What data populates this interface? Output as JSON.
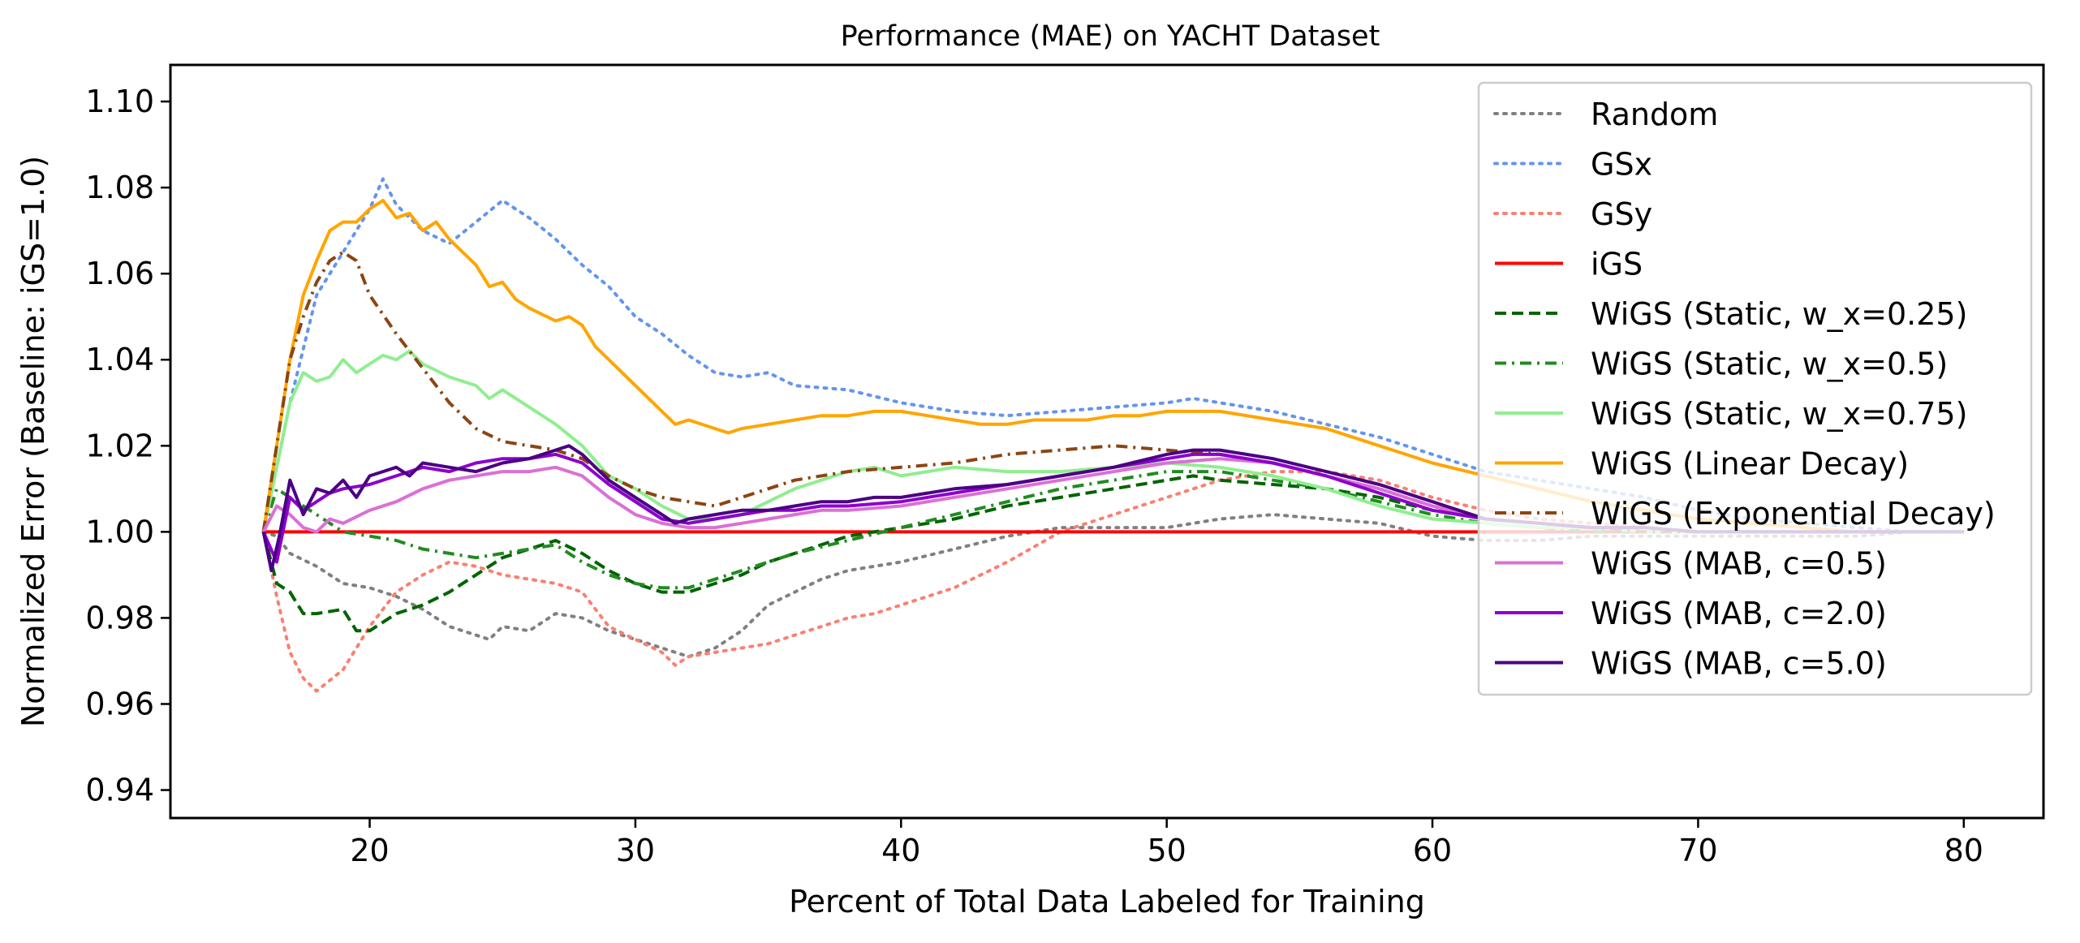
{
  "chart_data": {
    "type": "line",
    "title": "Performance (MAE) on YACHT Dataset",
    "xlabel": "Percent of Total Data Labeled for Training",
    "ylabel": "Normalized Error (Baseline: iGS=1.0)",
    "xlim": [
      12.5,
      83.0
    ],
    "ylim": [
      0.9335,
      1.1085
    ],
    "xticks": [
      20,
      30,
      40,
      50,
      60,
      70,
      80
    ],
    "xtick_labels": [
      "20",
      "30",
      "40",
      "50",
      "60",
      "70",
      "80"
    ],
    "yticks": [
      0.94,
      0.96,
      0.98,
      1.0,
      1.02,
      1.04,
      1.06,
      1.08,
      1.1
    ],
    "ytick_labels": [
      "0.94",
      "0.96",
      "0.98",
      "1.00",
      "1.02",
      "1.04",
      "1.06",
      "1.08",
      "1.10"
    ],
    "grid": false,
    "legend_position": "top-right",
    "series": [
      {
        "name": "Random",
        "color": "#808080",
        "dash": "dotted",
        "x": [
          16,
          16.5,
          17,
          18,
          19,
          20,
          21,
          22,
          23,
          24,
          24.5,
          25,
          26,
          27,
          28,
          29,
          30,
          31,
          32,
          33,
          34,
          35,
          36,
          37,
          38,
          39,
          40,
          42,
          44,
          46,
          48,
          50,
          52,
          54,
          56,
          58,
          60,
          62,
          64,
          66,
          68,
          70,
          72,
          74,
          76,
          78,
          80
        ],
        "y": [
          1.0,
          0.999,
          0.995,
          0.992,
          0.988,
          0.987,
          0.985,
          0.982,
          0.978,
          0.976,
          0.975,
          0.978,
          0.977,
          0.981,
          0.98,
          0.977,
          0.975,
          0.973,
          0.971,
          0.973,
          0.977,
          0.983,
          0.986,
          0.989,
          0.991,
          0.992,
          0.993,
          0.996,
          0.999,
          1.001,
          1.001,
          1.001,
          1.003,
          1.004,
          1.003,
          1.002,
          0.999,
          0.998,
          0.998,
          0.999,
          0.999,
          0.999,
          0.999,
          0.999,
          0.999,
          1.0,
          1.0
        ]
      },
      {
        "name": "GSx",
        "color": "#6495ed",
        "dash": "dotted",
        "x": [
          16,
          17,
          18,
          19,
          20,
          20.5,
          21,
          22,
          23,
          24,
          25,
          26,
          27,
          28,
          29,
          30,
          31,
          32,
          33,
          34,
          35,
          36,
          38,
          40,
          42,
          44,
          46,
          48,
          50,
          51,
          52,
          54,
          56,
          58,
          60,
          62,
          64,
          66,
          68,
          70,
          72,
          74,
          76,
          78,
          80
        ],
        "y": [
          1.0,
          1.03,
          1.055,
          1.065,
          1.075,
          1.082,
          1.076,
          1.07,
          1.067,
          1.072,
          1.077,
          1.073,
          1.068,
          1.062,
          1.057,
          1.05,
          1.046,
          1.041,
          1.037,
          1.036,
          1.037,
          1.034,
          1.033,
          1.03,
          1.028,
          1.027,
          1.028,
          1.029,
          1.03,
          1.031,
          1.03,
          1.028,
          1.025,
          1.022,
          1.018,
          1.014,
          1.012,
          1.01,
          1.008,
          1.005,
          1.003,
          1.002,
          1.001,
          1.0,
          1.0
        ]
      },
      {
        "name": "GSy",
        "color": "#fa8072",
        "dash": "dotted",
        "x": [
          16,
          16.5,
          17,
          17.5,
          18,
          19,
          20,
          21,
          22,
          23,
          24,
          25,
          26,
          27,
          28,
          29,
          30,
          31,
          31.5,
          32,
          33,
          34,
          35,
          36,
          37,
          38,
          39,
          40,
          42,
          44,
          46,
          48,
          50,
          52,
          54,
          56,
          58,
          60,
          62,
          64,
          66,
          68,
          70,
          72,
          74,
          76,
          78,
          80
        ],
        "y": [
          1.0,
          0.985,
          0.972,
          0.966,
          0.963,
          0.968,
          0.978,
          0.986,
          0.99,
          0.993,
          0.992,
          0.99,
          0.989,
          0.988,
          0.986,
          0.978,
          0.975,
          0.972,
          0.969,
          0.971,
          0.972,
          0.973,
          0.974,
          0.976,
          0.978,
          0.98,
          0.981,
          0.983,
          0.987,
          0.993,
          1.0,
          1.004,
          1.008,
          1.012,
          1.014,
          1.014,
          1.012,
          1.008,
          1.005,
          1.003,
          1.002,
          1.001,
          1.0,
          1.0,
          1.0,
          1.0,
          1.0,
          1.0
        ]
      },
      {
        "name": "iGS",
        "color": "#ff0000",
        "dash": "solid",
        "x": [
          16,
          80
        ],
        "y": [
          1.0,
          1.0
        ]
      },
      {
        "name": "WiGS (Static, w_x=0.25)",
        "color": "#006400",
        "dash": "dashed",
        "x": [
          16,
          16.5,
          17,
          17.5,
          18,
          19,
          19.5,
          20,
          21,
          22,
          23,
          24,
          25,
          26,
          27,
          28,
          29,
          30,
          31,
          32,
          33,
          34,
          35,
          36,
          37,
          38,
          39,
          40,
          42,
          44,
          46,
          48,
          50,
          51,
          52,
          54,
          56,
          58,
          60,
          62,
          64,
          66,
          68,
          70,
          72,
          74,
          76,
          78,
          80
        ],
        "y": [
          1.0,
          0.988,
          0.986,
          0.981,
          0.981,
          0.982,
          0.977,
          0.977,
          0.981,
          0.983,
          0.986,
          0.99,
          0.994,
          0.996,
          0.998,
          0.995,
          0.991,
          0.988,
          0.986,
          0.986,
          0.988,
          0.99,
          0.993,
          0.995,
          0.997,
          0.999,
          1.0,
          1.001,
          1.003,
          1.006,
          1.008,
          1.01,
          1.012,
          1.013,
          1.012,
          1.011,
          1.01,
          1.008,
          1.005,
          1.003,
          1.002,
          1.001,
          1.001,
          1.0,
          1.0,
          1.0,
          1.0,
          1.0,
          1.0
        ]
      },
      {
        "name": "WiGS (Static, w_x=0.5)",
        "color": "#228b22",
        "dash": "dashdot",
        "x": [
          16,
          16.5,
          17,
          18,
          19,
          20,
          21,
          22,
          23,
          24,
          25,
          26,
          27,
          28,
          29,
          30,
          31,
          32,
          33,
          34,
          35,
          36,
          38,
          40,
          42,
          44,
          46,
          48,
          50,
          52,
          54,
          56,
          58,
          60,
          62,
          64,
          66,
          68,
          70,
          72,
          74,
          76,
          78,
          80
        ],
        "y": [
          1.0,
          1.01,
          1.008,
          1.004,
          1.0,
          0.999,
          0.998,
          0.996,
          0.995,
          0.994,
          0.995,
          0.996,
          0.997,
          0.993,
          0.99,
          0.988,
          0.987,
          0.987,
          0.989,
          0.991,
          0.993,
          0.995,
          0.998,
          1.001,
          1.004,
          1.007,
          1.01,
          1.012,
          1.014,
          1.014,
          1.012,
          1.01,
          1.007,
          1.004,
          1.002,
          1.001,
          1.0,
          1.0,
          1.0,
          1.0,
          1.0,
          1.0,
          1.0,
          1.0
        ]
      },
      {
        "name": "WiGS (Static, w_x=0.75)",
        "color": "#90ee90",
        "dash": "solid",
        "x": [
          16,
          17,
          17.5,
          18,
          18.5,
          19,
          19.5,
          20,
          20.5,
          21,
          21.5,
          22,
          23,
          24,
          24.5,
          25,
          26,
          27,
          28,
          29,
          30,
          31,
          32,
          33,
          34,
          35,
          36,
          37,
          38,
          39,
          40,
          42,
          44,
          46,
          48,
          50,
          52,
          54,
          56,
          58,
          60,
          62,
          64,
          66,
          68,
          70,
          72,
          74,
          76,
          78,
          80
        ],
        "y": [
          1.0,
          1.03,
          1.037,
          1.035,
          1.036,
          1.04,
          1.037,
          1.039,
          1.041,
          1.04,
          1.042,
          1.039,
          1.036,
          1.034,
          1.031,
          1.033,
          1.029,
          1.025,
          1.02,
          1.013,
          1.01,
          1.006,
          1.003,
          1.003,
          1.004,
          1.007,
          1.01,
          1.012,
          1.014,
          1.015,
          1.013,
          1.015,
          1.014,
          1.014,
          1.015,
          1.016,
          1.015,
          1.013,
          1.01,
          1.006,
          1.003,
          1.002,
          1.001,
          1.001,
          1.0,
          1.0,
          1.0,
          1.0,
          1.0,
          1.0,
          1.0
        ]
      },
      {
        "name": "WiGS (Linear Decay)",
        "color": "#ffa500",
        "dash": "solid",
        "x": [
          16,
          17,
          17.5,
          18,
          18.5,
          19,
          19.5,
          20,
          20.5,
          21,
          21.5,
          22,
          22.5,
          23,
          24,
          24.5,
          25,
          25.5,
          26,
          27,
          27.5,
          28,
          28.5,
          29,
          30,
          31,
          31.5,
          32,
          33,
          33.5,
          34,
          35,
          36,
          37,
          38,
          39,
          40,
          41,
          42,
          43,
          44,
          45,
          46,
          47,
          48,
          49,
          50,
          51,
          52,
          53,
          54,
          55,
          56,
          57,
          58,
          59,
          60,
          62,
          64,
          66,
          68,
          70,
          72,
          74,
          76,
          78,
          80
        ],
        "y": [
          1.0,
          1.04,
          1.055,
          1.063,
          1.07,
          1.072,
          1.072,
          1.075,
          1.077,
          1.073,
          1.074,
          1.07,
          1.072,
          1.068,
          1.062,
          1.057,
          1.058,
          1.054,
          1.052,
          1.049,
          1.05,
          1.048,
          1.043,
          1.04,
          1.034,
          1.028,
          1.025,
          1.026,
          1.024,
          1.023,
          1.024,
          1.025,
          1.026,
          1.027,
          1.027,
          1.028,
          1.028,
          1.027,
          1.026,
          1.025,
          1.025,
          1.026,
          1.026,
          1.026,
          1.027,
          1.027,
          1.028,
          1.028,
          1.028,
          1.027,
          1.026,
          1.025,
          1.024,
          1.022,
          1.02,
          1.018,
          1.016,
          1.013,
          1.01,
          1.007,
          1.005,
          1.003,
          1.002,
          1.001,
          1.0,
          1.0,
          1.0
        ]
      },
      {
        "name": "WiGS (Exponential Decay)",
        "color": "#8b4513",
        "dash": "dashdot",
        "x": [
          16,
          17,
          17.5,
          18,
          18.5,
          19,
          19.5,
          20,
          21,
          22,
          23,
          24,
          25,
          26,
          27,
          28,
          29,
          30,
          31,
          32,
          33,
          34,
          35,
          36,
          38,
          40,
          42,
          44,
          46,
          48,
          50,
          52,
          54,
          56,
          58,
          60,
          62,
          64,
          66,
          68,
          70,
          72,
          74,
          76,
          78,
          80
        ],
        "y": [
          1.0,
          1.04,
          1.05,
          1.058,
          1.063,
          1.065,
          1.063,
          1.055,
          1.046,
          1.038,
          1.03,
          1.024,
          1.021,
          1.02,
          1.019,
          1.017,
          1.013,
          1.01,
          1.008,
          1.007,
          1.006,
          1.008,
          1.01,
          1.012,
          1.014,
          1.015,
          1.016,
          1.018,
          1.019,
          1.02,
          1.019,
          1.018,
          1.016,
          1.013,
          1.01,
          1.006,
          1.003,
          1.002,
          1.001,
          1.0,
          1.0,
          1.0,
          1.0,
          1.0,
          1.0,
          1.0
        ]
      },
      {
        "name": "WiGS (MAB, c=0.5)",
        "color": "#da70d6",
        "dash": "solid",
        "x": [
          16,
          16.5,
          17,
          17.5,
          18,
          18.5,
          19,
          20,
          21,
          22,
          23,
          24,
          25,
          26,
          27,
          28,
          29,
          30,
          31,
          32,
          33,
          34,
          35,
          36,
          37,
          38,
          40,
          42,
          44,
          46,
          48,
          50,
          52,
          54,
          56,
          58,
          60,
          62,
          64,
          66,
          68,
          70,
          72,
          74,
          76,
          78,
          80
        ],
        "y": [
          1.0,
          1.006,
          1.004,
          1.001,
          1.0,
          1.003,
          1.002,
          1.005,
          1.007,
          1.01,
          1.012,
          1.013,
          1.014,
          1.014,
          1.015,
          1.013,
          1.008,
          1.004,
          1.002,
          1.001,
          1.001,
          1.002,
          1.003,
          1.004,
          1.005,
          1.005,
          1.006,
          1.008,
          1.01,
          1.012,
          1.014,
          1.016,
          1.017,
          1.016,
          1.013,
          1.01,
          1.006,
          1.003,
          1.002,
          1.001,
          1.001,
          1.0,
          1.0,
          1.0,
          1.0,
          1.0,
          1.0
        ]
      },
      {
        "name": "WiGS (MAB, c=2.0)",
        "color": "#8b00cd",
        "dash": "solid",
        "x": [
          16,
          16.5,
          17,
          17.5,
          18,
          18.5,
          19,
          20,
          21,
          22,
          23,
          24,
          25,
          26,
          27,
          28,
          29,
          30,
          31,
          32,
          33,
          34,
          35,
          36,
          37,
          38,
          40,
          42,
          44,
          46,
          48,
          50,
          51,
          52,
          54,
          56,
          58,
          60,
          62,
          64,
          66,
          68,
          70,
          72,
          74,
          76,
          78,
          80
        ],
        "y": [
          1.0,
          0.993,
          1.008,
          1.005,
          1.007,
          1.009,
          1.01,
          1.011,
          1.013,
          1.015,
          1.014,
          1.016,
          1.017,
          1.017,
          1.018,
          1.016,
          1.011,
          1.007,
          1.003,
          1.002,
          1.003,
          1.004,
          1.005,
          1.005,
          1.006,
          1.006,
          1.007,
          1.009,
          1.011,
          1.013,
          1.015,
          1.017,
          1.018,
          1.018,
          1.016,
          1.013,
          1.009,
          1.005,
          1.003,
          1.002,
          1.001,
          1.001,
          1.0,
          1.0,
          1.0,
          1.0,
          1.0,
          1.0
        ]
      },
      {
        "name": "WiGS (MAB, c=5.0)",
        "color": "#4b0082",
        "dash": "solid",
        "x": [
          16,
          16.3,
          16.6,
          17,
          17.5,
          18,
          18.5,
          19,
          19.5,
          20,
          20.5,
          21,
          21.5,
          22,
          23,
          24,
          25,
          26,
          27,
          27.5,
          28,
          29,
          30,
          31,
          31.5,
          32,
          33,
          34,
          35,
          36,
          37,
          38,
          39,
          40,
          42,
          44,
          46,
          48,
          50,
          51,
          52,
          53,
          54,
          56,
          58,
          60,
          62,
          64,
          66,
          68,
          70,
          72,
          74,
          76,
          78,
          80
        ],
        "y": [
          1.0,
          0.991,
          0.999,
          1.012,
          1.004,
          1.01,
          1.009,
          1.012,
          1.008,
          1.013,
          1.014,
          1.015,
          1.013,
          1.016,
          1.015,
          1.014,
          1.016,
          1.017,
          1.019,
          1.02,
          1.018,
          1.012,
          1.008,
          1.004,
          1.002,
          1.003,
          1.004,
          1.005,
          1.005,
          1.006,
          1.007,
          1.007,
          1.008,
          1.008,
          1.01,
          1.011,
          1.013,
          1.015,
          1.018,
          1.019,
          1.019,
          1.018,
          1.017,
          1.014,
          1.011,
          1.007,
          1.003,
          1.002,
          1.001,
          1.001,
          1.0,
          1.0,
          1.0,
          1.0,
          1.0,
          1.0
        ]
      }
    ]
  }
}
